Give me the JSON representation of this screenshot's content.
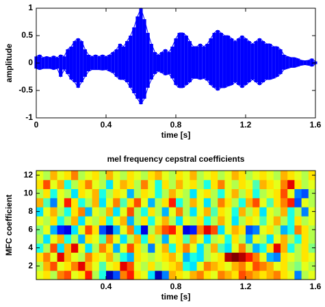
{
  "chart_data": [
    {
      "type": "band",
      "x_label": "time [s]",
      "y_label": "amplitude",
      "xlim": [
        0,
        1.6
      ],
      "ylim": [
        -1,
        1
      ],
      "xticks": [
        0,
        0.4,
        0.8,
        1.2,
        1.6
      ],
      "yticks": [
        -1,
        -0.5,
        0,
        0.5,
        1
      ],
      "x": [
        0,
        0.02,
        0.04,
        0.06,
        0.08,
        0.1,
        0.12,
        0.14,
        0.16,
        0.18,
        0.2,
        0.22,
        0.24,
        0.26,
        0.28,
        0.3,
        0.32,
        0.34,
        0.36,
        0.38,
        0.4,
        0.42,
        0.44,
        0.46,
        0.48,
        0.5,
        0.52,
        0.54,
        0.56,
        0.58,
        0.6,
        0.62,
        0.64,
        0.66,
        0.68,
        0.7,
        0.72,
        0.74,
        0.76,
        0.78,
        0.8,
        0.82,
        0.84,
        0.86,
        0.88,
        0.9,
        0.92,
        0.94,
        0.96,
        0.98,
        1.0,
        1.02,
        1.04,
        1.06,
        1.08,
        1.1,
        1.12,
        1.14,
        1.16,
        1.18,
        1.2,
        1.22,
        1.24,
        1.26,
        1.28,
        1.3,
        1.32,
        1.34,
        1.36,
        1.38,
        1.4,
        1.42,
        1.44,
        1.46,
        1.48,
        1.5,
        1.52,
        1.54,
        1.56,
        1.58,
        1.6
      ],
      "series": [
        {
          "color": "#0000ff",
          "values": [
            0.12,
            0.15,
            0.1,
            0.12,
            0.1,
            0.13,
            0.1,
            0.15,
            0.12,
            0.25,
            0.3,
            0.4,
            0.45,
            0.4,
            0.25,
            0.15,
            0.12,
            0.15,
            0.12,
            0.15,
            0.12,
            0.15,
            0.2,
            0.25,
            0.35,
            0.3,
            0.4,
            0.5,
            0.65,
            0.85,
            1.0,
            0.8,
            0.55,
            0.35,
            0.2,
            0.15,
            0.2,
            0.25,
            0.2,
            0.3,
            0.45,
            0.55,
            0.55,
            0.5,
            0.4,
            0.3,
            0.3,
            0.35,
            0.3,
            0.35,
            0.45,
            0.55,
            0.6,
            0.55,
            0.5,
            0.5,
            0.45,
            0.4,
            0.45,
            0.5,
            0.45,
            0.4,
            0.35,
            0.4,
            0.45,
            0.4,
            0.35,
            0.35,
            0.3,
            0.3,
            0.25,
            0.15,
            0.12,
            0.1,
            0.1,
            0.08,
            0.05,
            0.04,
            0.05,
            0.08,
            0.03
          ]
        },
        {
          "color": "#0000ff",
          "values": [
            -0.1,
            -0.12,
            -0.1,
            -0.1,
            -0.1,
            -0.12,
            -0.1,
            -0.25,
            -0.12,
            -0.2,
            -0.3,
            -0.35,
            -0.45,
            -0.35,
            -0.25,
            -0.15,
            -0.12,
            -0.12,
            -0.12,
            -0.13,
            -0.12,
            -0.15,
            -0.18,
            -0.25,
            -0.3,
            -0.3,
            -0.35,
            -0.45,
            -0.55,
            -0.65,
            -0.75,
            -0.65,
            -0.45,
            -0.3,
            -0.2,
            -0.15,
            -0.18,
            -0.22,
            -0.2,
            -0.28,
            -0.4,
            -0.45,
            -0.45,
            -0.4,
            -0.35,
            -0.28,
            -0.28,
            -0.3,
            -0.28,
            -0.32,
            -0.4,
            -0.45,
            -0.5,
            -0.45,
            -0.45,
            -0.42,
            -0.4,
            -0.35,
            -0.4,
            -0.45,
            -0.4,
            -0.35,
            -0.3,
            -0.35,
            -0.4,
            -0.35,
            -0.3,
            -0.3,
            -0.28,
            -0.25,
            -0.2,
            -0.12,
            -0.1,
            -0.08,
            -0.08,
            -0.06,
            -0.04,
            -0.03,
            -0.04,
            -0.06,
            -0.02
          ]
        }
      ]
    },
    {
      "type": "heatmap",
      "title": "mel frequency cepstral coefficients",
      "x_label": "time [s]",
      "y_label": "MFC coefficient",
      "xlim": [
        0,
        1.6
      ],
      "ylim": [
        0.5,
        12.5
      ],
      "xticks": [
        0.4,
        0.8,
        1.2,
        1.6
      ],
      "yticks": [
        2,
        4,
        6,
        8,
        10,
        12
      ],
      "clim": [
        -1,
        1
      ],
      "colormap": "jet",
      "z": [
        [
          0.2,
          0.3,
          0.1,
          0.5,
          0.6,
          0.2,
          0.3,
          0.7,
          0.1,
          -0.2,
          -0.9,
          -0.6,
          0.5,
          0.7,
          0.3,
          0.2,
          -0.3,
          -0.9,
          -0.5,
          0.4,
          0.3,
          0.2,
          0.4,
          0.5,
          0.3,
          0.2,
          0.5,
          0.4,
          0.3,
          0.6,
          0.5,
          0.4,
          0.3,
          0.4,
          0.5,
          0.3,
          0.2,
          -0.5,
          0.1,
          0.2
        ],
        [
          0.1,
          0.4,
          0.6,
          0.2,
          0.3,
          0.5,
          0.8,
          0.4,
          0.2,
          -0.1,
          0.2,
          0.3,
          0.8,
          0.6,
          0.2,
          0.1,
          0.3,
          0.1,
          0.2,
          0.3,
          0.4,
          -0.2,
          -0.3,
          0.2,
          0.5,
          0.4,
          0.3,
          0.2,
          0.4,
          0.5,
          0.3,
          0.6,
          0.5,
          0.4,
          0.2,
          0.3,
          0.1,
          0.0,
          0.2,
          0.1
        ],
        [
          0.3,
          0.5,
          0.2,
          0.8,
          0.4,
          0.2,
          0.1,
          0.5,
          0.3,
          0.2,
          0.4,
          0.1,
          -0.2,
          -0.4,
          0.3,
          0.2,
          0.1,
          0.2,
          0.3,
          0.4,
          0.2,
          -0.4,
          -0.2,
          -0.3,
          0.1,
          0.2,
          0.3,
          0.9,
          1.0,
          0.9,
          0.7,
          0.5,
          0.2,
          -0.4,
          -0.5,
          0.3,
          0.2,
          0.1,
          0.3,
          0.2
        ],
        [
          -0.2,
          0.1,
          0.6,
          -0.3,
          0.4,
          0.8,
          0.2,
          -0.3,
          0.1,
          0.5,
          0.3,
          -0.4,
          0.2,
          0.6,
          0.3,
          0.1,
          -0.5,
          0.2,
          0.4,
          -0.2,
          0.3,
          0.5,
          0.2,
          -0.3,
          0.1,
          0.4,
          -0.1,
          -0.3,
          0.2,
          0.5,
          0.1,
          -0.4,
          -0.2,
          0.3,
          0.8,
          0.4,
          -0.2,
          0.1,
          0.3,
          0.0
        ],
        [
          0.1,
          -0.3,
          0.2,
          0.4,
          -0.2,
          0.1,
          -0.4,
          0.3,
          0.2,
          -0.1,
          0.5,
          0.2,
          -0.3,
          0.1,
          0.4,
          -0.2,
          0.3,
          0.1,
          -0.4,
          0.2,
          0.3,
          -0.1,
          0.4,
          0.2,
          -0.3,
          0.1,
          0.2,
          -0.2,
          0.3,
          0.1,
          -0.4,
          0.2,
          0.1,
          -0.3,
          0.2,
          0.4,
          0.1,
          -0.2,
          0.3,
          0.1
        ],
        [
          0.0,
          0.2,
          -0.4,
          -0.7,
          -0.8,
          -0.3,
          0.2,
          0.6,
          0.3,
          -0.6,
          -0.9,
          -0.4,
          0.2,
          0.5,
          -0.3,
          -0.8,
          0.1,
          0.4,
          0.6,
          0.7,
          0.3,
          -0.8,
          -0.7,
          0.5,
          0.8,
          0.6,
          -0.3,
          0.2,
          0.4,
          0.3,
          -0.6,
          -0.5,
          0.2,
          0.3,
          0.1,
          -0.4,
          -0.2,
          0.5,
          0.3,
          0.1
        ],
        [
          0.2,
          0.1,
          0.3,
          -0.2,
          0.1,
          0.4,
          -0.3,
          0.2,
          0.1,
          0.3,
          -0.2,
          0.2,
          0.4,
          -0.4,
          0.1,
          0.3,
          -0.2,
          0.2,
          0.4,
          0.1,
          -0.3,
          0.2,
          0.1,
          0.3,
          -0.2,
          0.1,
          0.4,
          0.2,
          -0.3,
          0.1,
          0.3,
          0.2,
          -0.1,
          0.2,
          0.4,
          0.1,
          -0.2,
          0.3,
          0.1,
          0.2
        ],
        [
          -0.3,
          0.2,
          0.4,
          0.1,
          -0.2,
          0.3,
          0.5,
          -0.4,
          0.2,
          0.1,
          0.4,
          -0.3,
          0.2,
          0.6,
          0.1,
          -0.2,
          0.3,
          0.1,
          -0.4,
          0.2,
          0.5,
          0.1,
          -0.3,
          0.2,
          0.4,
          -0.1,
          0.3,
          0.2,
          -0.2,
          0.4,
          0.1,
          0.3,
          -0.3,
          0.2,
          0.1,
          0.4,
          -0.2,
          0.1,
          -0.5,
          0.2
        ],
        [
          0.4,
          -0.1,
          -0.5,
          0.2,
          0.7,
          0.3,
          -0.2,
          0.1,
          0.4,
          -0.3,
          0.2,
          0.5,
          -0.1,
          0.3,
          0.6,
          0.2,
          -0.4,
          0.1,
          0.3,
          0.7,
          -0.2,
          0.1,
          0.4,
          0.2,
          -0.3,
          0.1,
          0.5,
          0.3,
          0.1,
          -0.2,
          0.4,
          0.6,
          0.2,
          -0.1,
          0.3,
          0.5,
          0.7,
          -0.6,
          0.2,
          0.1
        ],
        [
          0.1,
          0.3,
          -0.2,
          0.2,
          0.1,
          -0.3,
          0.3,
          0.2,
          0.4,
          -0.2,
          0.1,
          0.3,
          0.2,
          -0.4,
          0.1,
          0.3,
          0.2,
          -0.2,
          0.1,
          0.4,
          0.2,
          0.1,
          -0.3,
          0.2,
          0.3,
          0.1,
          -0.2,
          0.2,
          0.4,
          0.1,
          0.3,
          -0.2,
          0.1,
          0.2,
          0.3,
          0.6,
          0.2,
          -0.5,
          -0.6,
          0.1
        ],
        [
          0.3,
          0.6,
          0.2,
          0.4,
          -0.2,
          0.1,
          0.3,
          0.5,
          0.2,
          0.1,
          -0.3,
          0.2,
          0.4,
          0.3,
          0.1,
          0.5,
          0.2,
          -0.2,
          0.3,
          0.1,
          0.4,
          0.2,
          0.3,
          0.1,
          -0.2,
          0.3,
          0.5,
          0.2,
          0.1,
          0.3,
          0.2,
          -0.1,
          0.4,
          0.3,
          0.2,
          0.5,
          0.8,
          0.3,
          0.1,
          0.2
        ],
        [
          0.2,
          0.1,
          0.4,
          0.2,
          0.3,
          0.5,
          0.1,
          0.2,
          0.3,
          0.1,
          0.4,
          0.2,
          0.1,
          0.3,
          0.2,
          0.1,
          0.3,
          0.4,
          0.2,
          0.1,
          0.3,
          0.2,
          0.4,
          0.1,
          0.2,
          0.3,
          0.1,
          0.2,
          0.4,
          0.3,
          0.1,
          0.2,
          0.3,
          0.2,
          0.1,
          0.4,
          0.3,
          0.2,
          0.1,
          0.3
        ]
      ]
    }
  ]
}
